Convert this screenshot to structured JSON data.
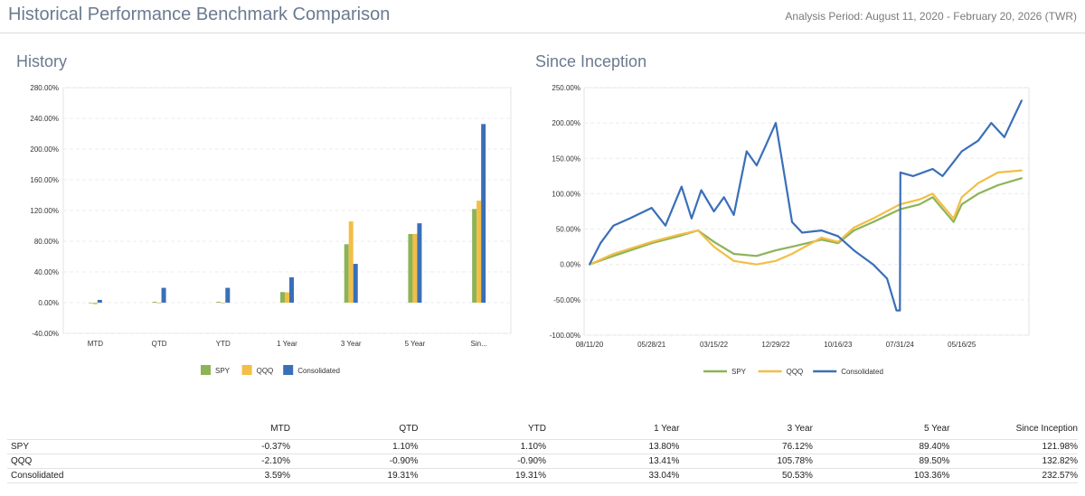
{
  "header": {
    "title": "Historical Performance Benchmark Comparison",
    "period": "Analysis Period: August 11, 2020 - February 20, 2026 (TWR)"
  },
  "colors": {
    "SPY": "#8db357",
    "QQQ": "#f3be45",
    "Consolidated": "#3a6fb8"
  },
  "chart_data": [
    {
      "type": "bar",
      "title": "History",
      "categories": [
        "MTD",
        "QTD",
        "YTD",
        "1 Year",
        "3 Year",
        "5 Year",
        "Sin..."
      ],
      "yticks": [
        "-40.00%",
        "0.00%",
        "40.00%",
        "80.00%",
        "120.00%",
        "160.00%",
        "200.00%",
        "240.00%",
        "280.00%"
      ],
      "ylim": [
        -40,
        280
      ],
      "grid": true,
      "legend": "bottom",
      "series": [
        {
          "name": "SPY",
          "values": [
            -0.37,
            1.1,
            1.1,
            13.8,
            76.12,
            89.4,
            121.98
          ]
        },
        {
          "name": "QQQ",
          "values": [
            -2.1,
            -0.9,
            -0.9,
            13.41,
            105.78,
            89.5,
            132.82
          ]
        },
        {
          "name": "Consolidated",
          "values": [
            3.59,
            19.31,
            19.31,
            33.04,
            50.53,
            103.36,
            232.57
          ]
        }
      ]
    },
    {
      "type": "line",
      "title": "Since Inception",
      "xticks": [
        "08/11/20",
        "05/28/21",
        "03/15/22",
        "12/29/22",
        "10/16/23",
        "07/31/24",
        "05/16/25"
      ],
      "yticks": [
        "-100.00%",
        "-50.00%",
        "0.00%",
        "50.00%",
        "100.00%",
        "150.00%",
        "200.00%",
        "250.00%"
      ],
      "ylim": [
        -100,
        250
      ],
      "grid": true,
      "legend": "bottom",
      "series": [
        {
          "name": "SPY",
          "x": [
            "08/11/20",
            "12/01/20",
            "05/28/21",
            "10/01/21",
            "12/31/21",
            "03/15/22",
            "06/16/22",
            "09/30/22",
            "12/29/22",
            "03/15/23",
            "07/31/23",
            "10/16/23",
            "12/29/23",
            "03/28/24",
            "07/31/24",
            "10/31/24",
            "12/31/24",
            "04/08/25",
            "05/16/25",
            "08/01/25",
            "11/01/25",
            "02/20/26"
          ],
          "y": [
            0,
            12,
            30,
            40,
            48,
            32,
            15,
            12,
            20,
            25,
            35,
            30,
            48,
            60,
            78,
            85,
            95,
            60,
            85,
            100,
            112,
            122
          ]
        },
        {
          "name": "QQQ",
          "x": [
            "08/11/20",
            "12/01/20",
            "05/28/21",
            "10/01/21",
            "12/31/21",
            "03/15/22",
            "06/16/22",
            "09/30/22",
            "12/29/22",
            "03/15/23",
            "07/31/23",
            "10/16/23",
            "12/29/23",
            "03/28/24",
            "07/31/24",
            "10/31/24",
            "12/31/24",
            "04/08/25",
            "05/16/25",
            "08/01/25",
            "11/01/25",
            "02/20/26"
          ],
          "y": [
            0,
            15,
            32,
            42,
            48,
            25,
            5,
            0,
            5,
            15,
            38,
            32,
            52,
            65,
            85,
            92,
            100,
            65,
            95,
            115,
            130,
            133
          ]
        },
        {
          "name": "Consolidated",
          "x": [
            "08/11/20",
            "10/01/20",
            "12/01/20",
            "02/15/21",
            "05/28/21",
            "08/01/21",
            "10/15/21",
            "12/01/21",
            "01/15/22",
            "03/15/22",
            "05/01/22",
            "06/16/22",
            "08/15/22",
            "10/01/22",
            "11/15/22",
            "12/29/22",
            "01/31/23",
            "03/15/23",
            "05/01/23",
            "07/31/23",
            "10/16/23",
            "12/29/23",
            "03/28/24",
            "06/01/24",
            "07/15/24",
            "07/31/24",
            "08/02/24",
            "10/01/24",
            "12/31/24",
            "02/15/25",
            "04/08/25",
            "05/16/25",
            "08/01/25",
            "10/01/25",
            "12/01/25",
            "02/20/26"
          ],
          "y": [
            0,
            30,
            55,
            65,
            80,
            55,
            110,
            65,
            105,
            75,
            95,
            70,
            160,
            140,
            170,
            200,
            140,
            60,
            45,
            48,
            40,
            20,
            0,
            -20,
            -65,
            -65,
            130,
            125,
            135,
            125,
            145,
            160,
            175,
            200,
            180,
            232
          ]
        }
      ]
    }
  ],
  "summary_table": {
    "columns": [
      "",
      "MTD",
      "QTD",
      "YTD",
      "1 Year",
      "3 Year",
      "5 Year",
      "Since Inception"
    ],
    "rows": [
      {
        "name": "SPY",
        "values": [
          "-0.37%",
          "1.10%",
          "1.10%",
          "13.80%",
          "76.12%",
          "89.40%",
          "121.98%"
        ]
      },
      {
        "name": "QQQ",
        "values": [
          "-2.10%",
          "-0.90%",
          "-0.90%",
          "13.41%",
          "105.78%",
          "89.50%",
          "132.82%"
        ]
      },
      {
        "name": "Consolidated",
        "values": [
          "3.59%",
          "19.31%",
          "19.31%",
          "33.04%",
          "50.53%",
          "103.36%",
          "232.57%"
        ]
      }
    ]
  }
}
